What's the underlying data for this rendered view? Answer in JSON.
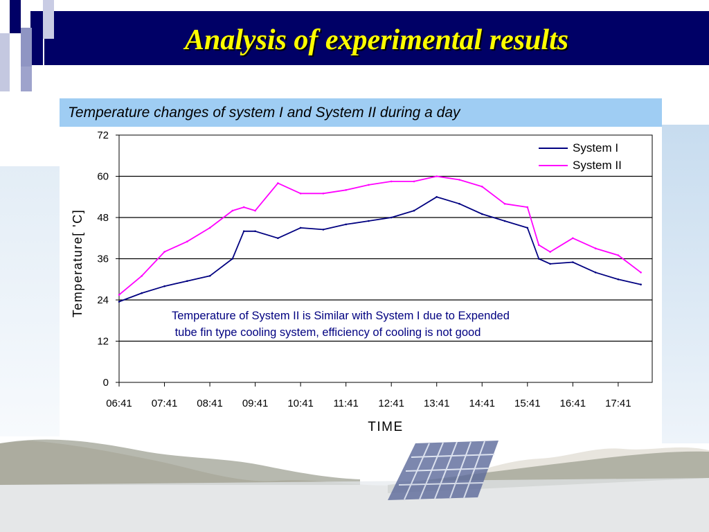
{
  "slide": {
    "title": "Analysis of experimental results"
  },
  "chart_data": {
    "type": "line",
    "title": "Temperature changes of  system I and System II during a day",
    "xlabel": "TIME",
    "ylabel": "Temperature[ 'C]",
    "ylim": [
      0,
      72
    ],
    "yticks": [
      0,
      12,
      24,
      36,
      48,
      60,
      72
    ],
    "xticks": [
      "06:41",
      "07:41",
      "08:41",
      "09:41",
      "10:41",
      "11:41",
      "12:41",
      "13:41",
      "14:41",
      "15:41",
      "16:41",
      "17:41"
    ],
    "grid": "horizontal",
    "legend": "top-right",
    "annotation": "Temperature of System II is Similar with System I due to Expended\n tube fin type cooling system, efficiency of cooling is not good",
    "x": [
      "06:41",
      "07:11",
      "07:41",
      "08:11",
      "08:41",
      "09:11",
      "09:26",
      "09:41",
      "10:11",
      "10:41",
      "11:11",
      "11:41",
      "12:11",
      "12:41",
      "13:11",
      "13:41",
      "14:11",
      "14:41",
      "15:11",
      "15:41",
      "15:56",
      "16:11",
      "16:41",
      "17:11",
      "17:41",
      "18:11"
    ],
    "series": [
      {
        "name": "System I",
        "color": "#000080",
        "values": [
          23.5,
          26,
          28,
          29.5,
          31,
          36,
          44,
          44,
          42,
          45,
          44.5,
          46,
          47,
          48,
          50,
          54,
          52,
          49,
          47,
          45,
          36,
          34.5,
          35,
          32,
          30,
          28.5
        ]
      },
      {
        "name": "System II",
        "color": "#ff00ff",
        "values": [
          25.5,
          31,
          38,
          41,
          45,
          50,
          51,
          50,
          58,
          55,
          55,
          56,
          57.5,
          58.5,
          58.5,
          60,
          59,
          57,
          52,
          51,
          40,
          38,
          42,
          39,
          37,
          32
        ]
      }
    ]
  }
}
